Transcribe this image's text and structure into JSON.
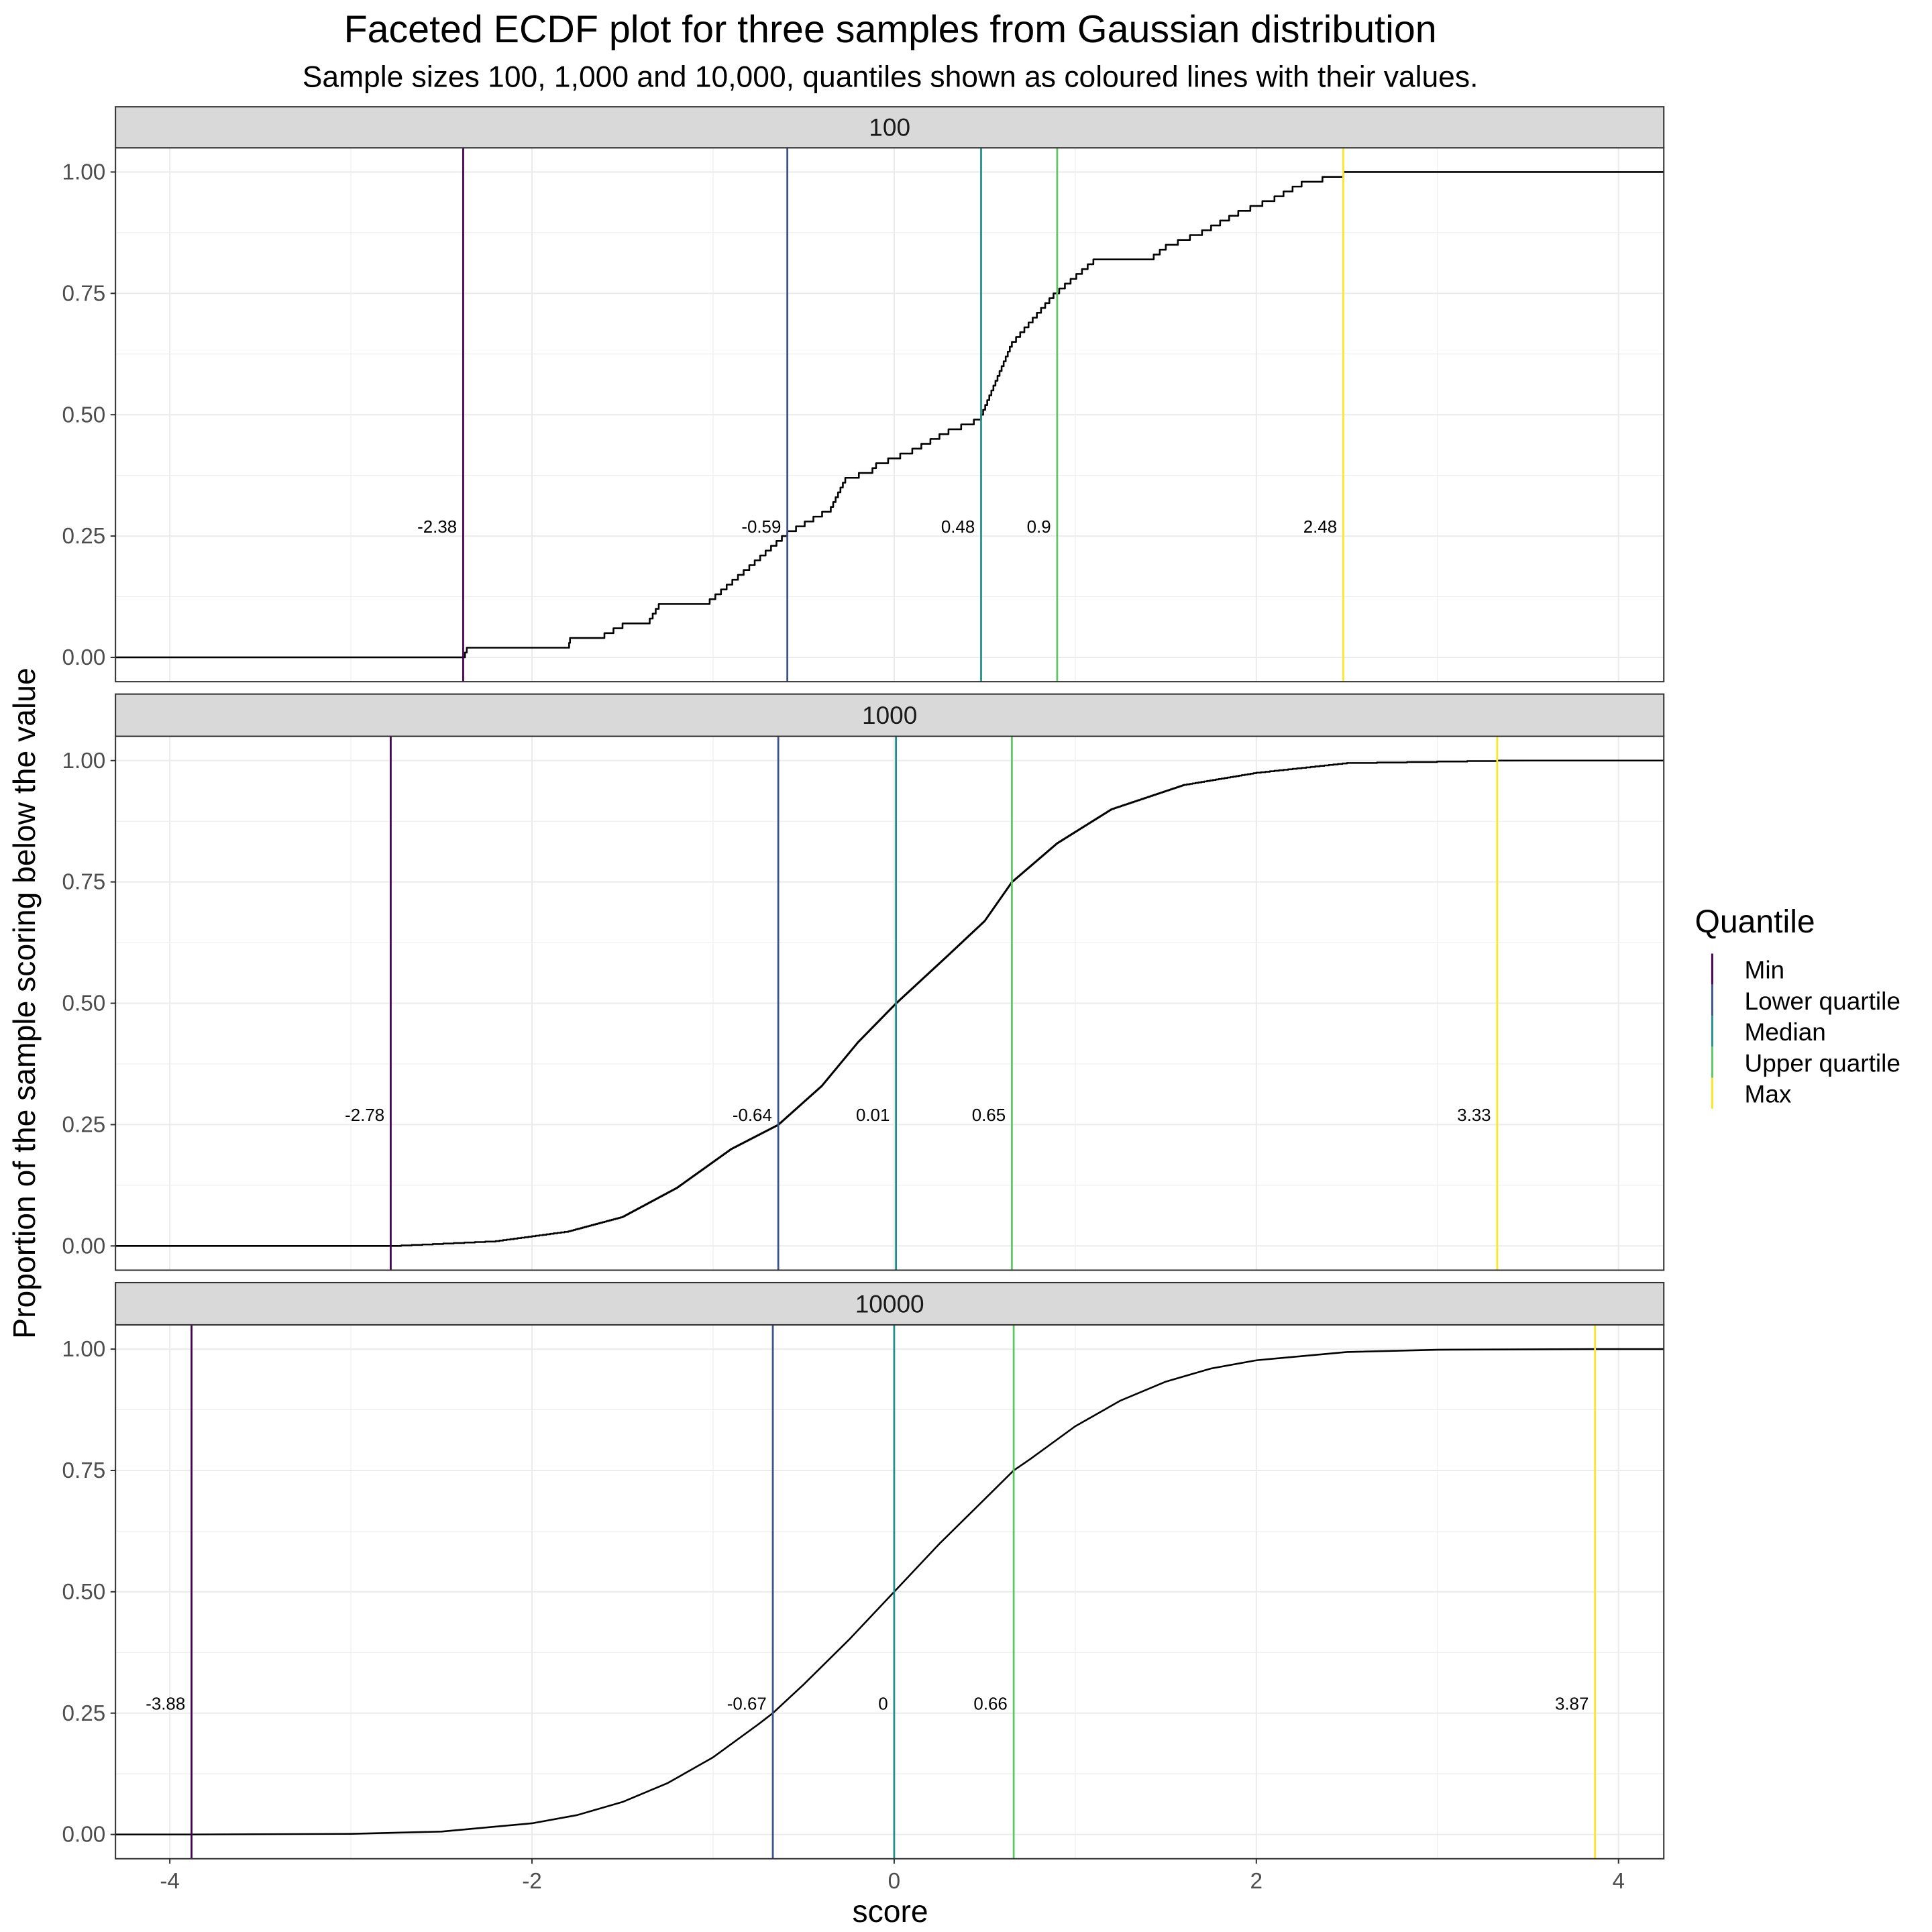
{
  "chart_data": {
    "type": "line",
    "title": "Faceted ECDF plot for three samples from Gaussian distribution",
    "subtitle": "Sample sizes 100, 1,000 and 10,000, quantiles shown as coloured lines with their values.",
    "xlabel": "score",
    "ylabel": "Proportion of the sample scoring below the value",
    "xlim": [
      -4.3,
      4.25
    ],
    "ylim": [
      -0.05,
      1.05
    ],
    "x_ticks": [
      -4,
      -2,
      0,
      2,
      4
    ],
    "x_tick_labels": [
      "-4",
      "-2",
      "0",
      "2",
      "4"
    ],
    "y_ticks": [
      0,
      0.25,
      0.5,
      0.75,
      1
    ],
    "y_tick_labels": [
      "0.00",
      "0.25",
      "0.50",
      "0.75",
      "1.00"
    ],
    "grid": true,
    "legend": {
      "title": "Quantile",
      "placement": "right",
      "entries": [
        {
          "name": "Min",
          "color": "#440154"
        },
        {
          "name": "Lower quartile",
          "color": "#3B528B"
        },
        {
          "name": "Median",
          "color": "#21908C"
        },
        {
          "name": "Upper quartile",
          "color": "#5DC863"
        },
        {
          "name": "Max",
          "color": "#FDE725"
        }
      ]
    },
    "label_y": 0.27,
    "facets": [
      {
        "strip": "100",
        "n": 100,
        "render": "step",
        "quantiles": [
          {
            "x": -2.38,
            "label": "-2.38"
          },
          {
            "x": -0.59,
            "label": "-0.59"
          },
          {
            "x": 0.48,
            "label": "0.48"
          },
          {
            "x": 0.9,
            "label": "0.9"
          },
          {
            "x": 2.48,
            "label": "2.48"
          }
        ],
        "ecdf_anchors": [
          [
            -2.38,
            0.0
          ],
          [
            -2.36,
            0.02
          ],
          [
            -1.8,
            0.02
          ],
          [
            -1.79,
            0.04
          ],
          [
            -1.6,
            0.05
          ],
          [
            -1.5,
            0.07
          ],
          [
            -1.35,
            0.08
          ],
          [
            -1.3,
            0.11
          ],
          [
            -1.05,
            0.11
          ],
          [
            -0.8,
            0.19
          ],
          [
            -0.59,
            0.26
          ],
          [
            -0.35,
            0.31
          ],
          [
            -0.27,
            0.37
          ],
          [
            -0.12,
            0.39
          ],
          [
            -0.1,
            0.4
          ],
          [
            0.1,
            0.43
          ],
          [
            0.3,
            0.47
          ],
          [
            0.44,
            0.49
          ],
          [
            0.48,
            0.5
          ],
          [
            0.65,
            0.65
          ],
          [
            0.88,
            0.75
          ],
          [
            1.1,
            0.82
          ],
          [
            1.4,
            0.82
          ],
          [
            1.5,
            0.85
          ],
          [
            1.7,
            0.88
          ],
          [
            1.9,
            0.92
          ],
          [
            2.1,
            0.95
          ],
          [
            2.25,
            0.98
          ],
          [
            2.48,
            1.0
          ]
        ]
      },
      {
        "strip": "1000",
        "n": 1000,
        "render": "step",
        "quantiles": [
          {
            "x": -2.78,
            "label": "-2.78"
          },
          {
            "x": -0.64,
            "label": "-0.64"
          },
          {
            "x": 0.01,
            "label": "0.01"
          },
          {
            "x": 0.65,
            "label": "0.65"
          },
          {
            "x": 3.33,
            "label": "3.33"
          }
        ],
        "ecdf_anchors": [
          [
            -2.78,
            0.0
          ],
          [
            -2.2,
            0.01
          ],
          [
            -1.8,
            0.03
          ],
          [
            -1.5,
            0.06
          ],
          [
            -1.2,
            0.12
          ],
          [
            -0.9,
            0.2
          ],
          [
            -0.64,
            0.25
          ],
          [
            -0.4,
            0.33
          ],
          [
            -0.2,
            0.42
          ],
          [
            0.01,
            0.5
          ],
          [
            0.3,
            0.6
          ],
          [
            0.5,
            0.67
          ],
          [
            0.65,
            0.75
          ],
          [
            0.9,
            0.83
          ],
          [
            1.2,
            0.9
          ],
          [
            1.6,
            0.95
          ],
          [
            2.0,
            0.975
          ],
          [
            2.5,
            0.995
          ],
          [
            3.33,
            1.0
          ]
        ]
      },
      {
        "strip": "10000",
        "n": 10000,
        "render": "smooth",
        "quantiles": [
          {
            "x": -3.88,
            "label": "-3.88"
          },
          {
            "x": -0.67,
            "label": "-0.67"
          },
          {
            "x": 0,
            "label": "0"
          },
          {
            "x": 0.66,
            "label": "0.66"
          },
          {
            "x": 3.87,
            "label": "3.87"
          }
        ],
        "ecdf_anchors": [
          [
            -3.88,
            0.0
          ],
          [
            -3.0,
            0.0013
          ],
          [
            -2.5,
            0.006
          ],
          [
            -2.0,
            0.023
          ],
          [
            -1.75,
            0.04
          ],
          [
            -1.5,
            0.067
          ],
          [
            -1.25,
            0.106
          ],
          [
            -1.0,
            0.159
          ],
          [
            -0.75,
            0.227
          ],
          [
            -0.67,
            0.25
          ],
          [
            -0.5,
            0.309
          ],
          [
            -0.25,
            0.401
          ],
          [
            0.0,
            0.5
          ],
          [
            0.25,
            0.599
          ],
          [
            0.5,
            0.691
          ],
          [
            0.66,
            0.75
          ],
          [
            0.75,
            0.773
          ],
          [
            1.0,
            0.841
          ],
          [
            1.25,
            0.894
          ],
          [
            1.5,
            0.933
          ],
          [
            1.75,
            0.96
          ],
          [
            2.0,
            0.977
          ],
          [
            2.5,
            0.994
          ],
          [
            3.0,
            0.9987
          ],
          [
            3.87,
            1.0
          ]
        ]
      }
    ]
  }
}
